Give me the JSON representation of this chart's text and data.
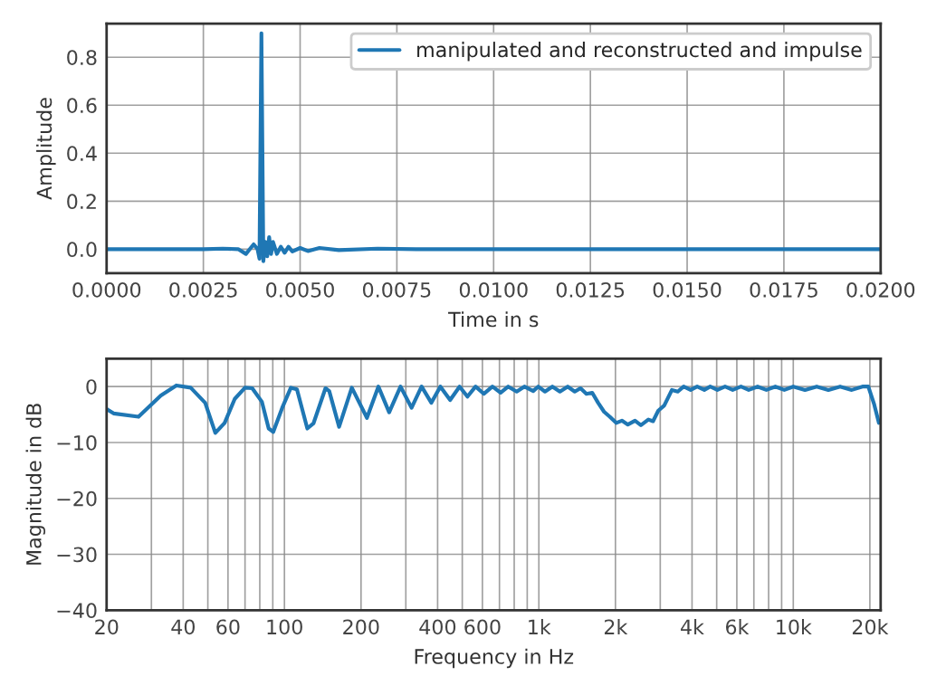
{
  "chart_data": [
    {
      "type": "line",
      "xlabel": "Time in s",
      "ylabel": "Amplitude",
      "legend": "top right",
      "grid": true,
      "xlim": [
        0,
        0.02
      ],
      "ylim": [
        -0.1,
        0.94
      ],
      "xticks": [
        {
          "value": 0,
          "label": "0.0000"
        },
        {
          "value": 0.0025,
          "label": "0.0025"
        },
        {
          "value": 0.005,
          "label": "0.0050"
        },
        {
          "value": 0.0075,
          "label": "0.0075"
        },
        {
          "value": 0.01,
          "label": "0.0100"
        },
        {
          "value": 0.0125,
          "label": "0.0125"
        },
        {
          "value": 0.015,
          "label": "0.0150"
        },
        {
          "value": 0.0175,
          "label": "0.0175"
        },
        {
          "value": 0.02,
          "label": "0.0200"
        }
      ],
      "yticks": [
        {
          "value": 0,
          "label": "0.0"
        },
        {
          "value": 0.2,
          "label": "0.2"
        },
        {
          "value": 0.4,
          "label": "0.4"
        },
        {
          "value": 0.6,
          "label": "0.6"
        },
        {
          "value": 0.8,
          "label": "0.8"
        }
      ],
      "series": [
        {
          "name": "manipulated and reconstructed and impulse",
          "color": "#1f77b4",
          "x": [
            0,
            0.0025,
            0.003,
            0.0034,
            0.0036,
            0.0037,
            0.0038,
            0.0039,
            0.00395,
            0.004,
            0.00405,
            0.0041,
            0.00415,
            0.0042,
            0.00425,
            0.0043,
            0.0044,
            0.0045,
            0.0046,
            0.0047,
            0.0048,
            0.005,
            0.0052,
            0.0055,
            0.006,
            0.007,
            0.008,
            0.01,
            0.015,
            0.02
          ],
          "values": [
            0,
            0,
            0.002,
            0,
            -0.02,
            0,
            0.02,
            0,
            -0.04,
            0.9,
            -0.05,
            0.03,
            -0.03,
            0.05,
            -0.02,
            0.03,
            -0.02,
            0.01,
            -0.015,
            0.01,
            -0.01,
            0.005,
            -0.008,
            0.005,
            -0.004,
            0.002,
            0,
            0,
            0,
            0
          ]
        }
      ]
    },
    {
      "type": "line",
      "xlabel": "Frequency in Hz",
      "ylabel": "Magnitude in dB",
      "grid": true,
      "log": "x",
      "xlim": [
        20,
        22050
      ],
      "ylim": [
        -40,
        5
      ],
      "xticks": [
        {
          "value": 20,
          "label": "20"
        },
        {
          "value": 30,
          "label": null
        },
        {
          "value": 40,
          "label": "40"
        },
        {
          "value": 50,
          "label": null
        },
        {
          "value": 60,
          "label": "60"
        },
        {
          "value": 70,
          "label": null
        },
        {
          "value": 80,
          "label": null
        },
        {
          "value": 90,
          "label": null
        },
        {
          "value": 100,
          "label": "100"
        },
        {
          "value": 200,
          "label": "200"
        },
        {
          "value": 300,
          "label": null
        },
        {
          "value": 400,
          "label": "400"
        },
        {
          "value": 500,
          "label": null
        },
        {
          "value": 600,
          "label": "600"
        },
        {
          "value": 700,
          "label": null
        },
        {
          "value": 800,
          "label": null
        },
        {
          "value": 900,
          "label": null
        },
        {
          "value": 1000,
          "label": "1k"
        },
        {
          "value": 2000,
          "label": "2k"
        },
        {
          "value": 3000,
          "label": null
        },
        {
          "value": 4000,
          "label": "4k"
        },
        {
          "value": 5000,
          "label": null
        },
        {
          "value": 6000,
          "label": "6k"
        },
        {
          "value": 7000,
          "label": null
        },
        {
          "value": 8000,
          "label": null
        },
        {
          "value": 9000,
          "label": null
        },
        {
          "value": 10000,
          "label": "10k"
        },
        {
          "value": 20000,
          "label": "20k"
        }
      ],
      "yticks": [
        0,
        {
          "value": -10,
          "label": "−10"
        },
        {
          "value": -20,
          "label": "−20"
        },
        {
          "value": -30,
          "label": "−30"
        },
        {
          "value": -40,
          "label": "−40"
        }
      ],
      "series": [
        {
          "color": "#1f77b4",
          "x": [
            20,
            21.3,
            26.7,
            32.7,
            37.6,
            42.8,
            48.8,
            53.5,
            58.2,
            63.8,
            70,
            74.7,
            81.5,
            86.7,
            90.4,
            98,
            106,
            112,
            123,
            130,
            145,
            150,
            164,
            184,
            211,
            234,
            258,
            286,
            316,
            346,
            378,
            410,
            448,
            488,
            524,
            564,
            608,
            657,
            708,
            758,
            818,
            877,
            950,
            994,
            1057,
            1130,
            1210,
            1298,
            1384,
            1458,
            1538,
            1621,
            1710,
            1804,
            1900,
            2014,
            2120,
            2238,
            2388,
            2518,
            2694,
            2810,
            2948,
            3110,
            3334,
            3516,
            3708,
            3950,
            4190,
            4470,
            4716,
            5032,
            5394,
            5780,
            6230,
            6680,
            7240,
            7840,
            8500,
            9220,
            10000,
            11120,
            12360,
            13740,
            15280,
            16980,
            18700,
            19720,
            20800,
            21700
          ],
          "values": [
            -4,
            -4.8,
            -5.4,
            -1.6,
            0.2,
            -0.2,
            -2.9,
            -8.3,
            -6.5,
            -2.2,
            -0.2,
            -0.3,
            -2.7,
            -7.5,
            -8.1,
            -3.8,
            -0.2,
            -0.5,
            -7.5,
            -6.6,
            -0.3,
            -0.8,
            -7.2,
            -0.2,
            -5.6,
            0,
            -4.6,
            0,
            -3.8,
            0,
            -2.9,
            0,
            -2.4,
            0,
            -1.8,
            0,
            -1.3,
            0,
            -1.1,
            0,
            -0.9,
            0,
            -0.8,
            0,
            -0.9,
            0,
            -0.9,
            0,
            -0.9,
            -0.3,
            -1.3,
            -1.1,
            -2.9,
            -4.5,
            -5.4,
            -6.5,
            -6.1,
            -6.8,
            -6.1,
            -6.9,
            -5.9,
            -6.2,
            -4.3,
            -3.4,
            -0.6,
            -0.9,
            0,
            -0.6,
            0,
            -0.6,
            0,
            -0.6,
            0,
            -0.6,
            0,
            -0.6,
            0,
            -0.6,
            0,
            -0.6,
            0,
            -0.6,
            0,
            -0.6,
            0,
            -0.6,
            0,
            0,
            -3.2,
            -6.5
          ]
        }
      ]
    }
  ]
}
